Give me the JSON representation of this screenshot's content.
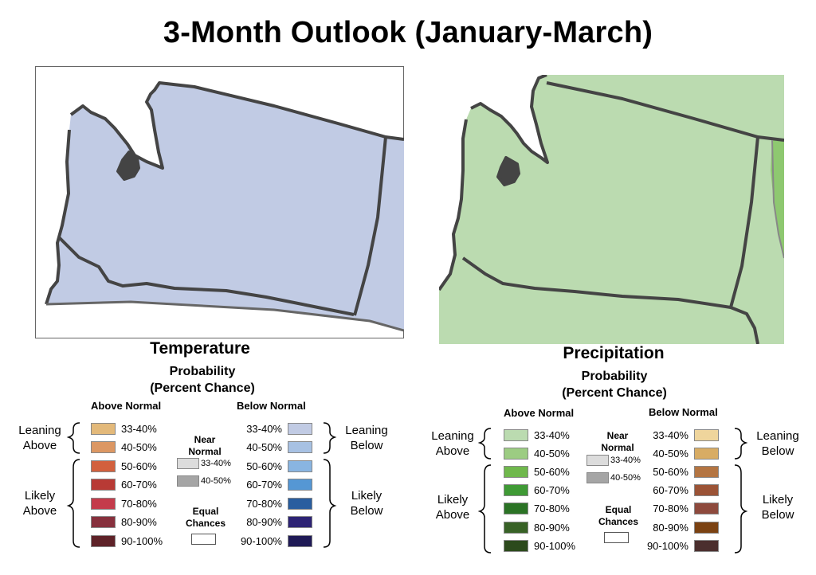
{
  "title": "3-Month Outlook (January-March)",
  "maps": {
    "temperature": {
      "fill": "#c1cbe4",
      "border": "#444444"
    },
    "precipitation": {
      "fill": "#bbdbb0",
      "accent_fill": "#8ec870",
      "border": "#444444"
    }
  },
  "temperature_legend": {
    "title": "Temperature",
    "subtitle_1": "Probability",
    "subtitle_2": "(Percent Chance)",
    "above_header": "Above Normal",
    "below_header": "Below Normal",
    "leaning_above_1": "Leaning",
    "leaning_above_2": "Above",
    "likely_above_1": "Likely",
    "likely_above_2": "Above",
    "leaning_below_1": "Leaning",
    "leaning_below_2": "Below",
    "likely_below_1": "Likely",
    "likely_below_2": "Below",
    "near_1": "Near",
    "near_2": "Normal",
    "equal_1": "Equal",
    "equal_2": "Chances",
    "above": [
      {
        "label": "33-40%",
        "color": "#e3b97a"
      },
      {
        "label": "40-50%",
        "color": "#dc9763"
      },
      {
        "label": "50-60%",
        "color": "#d2603d"
      },
      {
        "label": "60-70%",
        "color": "#b83a35"
      },
      {
        "label": "70-80%",
        "color": "#c43b4b"
      },
      {
        "label": "80-90%",
        "color": "#87303d"
      },
      {
        "label": "90-100%",
        "color": "#5e2228"
      }
    ],
    "below": [
      {
        "label": "33-40%",
        "color": "#c1cbe4"
      },
      {
        "label": "40-50%",
        "color": "#a7c1e3"
      },
      {
        "label": "50-60%",
        "color": "#89b5e1"
      },
      {
        "label": "60-70%",
        "color": "#5597d4"
      },
      {
        "label": "70-80%",
        "color": "#295d9f"
      },
      {
        "label": "80-90%",
        "color": "#2d2374"
      },
      {
        "label": "90-100%",
        "color": "#1f1a56"
      }
    ],
    "near": [
      {
        "label": "33-40%",
        "color": "#dcdcdc"
      },
      {
        "label": "40-50%",
        "color": "#a5a5a5"
      }
    ]
  },
  "precipitation_legend": {
    "title": "Precipitation",
    "subtitle_1": "Probability",
    "subtitle_2": "(Percent Chance)",
    "above_header": "Above Normal",
    "below_header": "Below Normal",
    "leaning_above_1": "Leaning",
    "leaning_above_2": "Above",
    "likely_above_1": "Likely",
    "likely_above_2": "Above",
    "leaning_below_1": "Leaning",
    "leaning_below_2": "Below",
    "likely_below_1": "Likely",
    "likely_below_2": "Below",
    "near_1": "Near",
    "near_2": "Normal",
    "equal_1": "Equal",
    "equal_2": "Chances",
    "above": [
      {
        "label": "33-40%",
        "color": "#bbdbb0"
      },
      {
        "label": "40-50%",
        "color": "#9ccc82"
      },
      {
        "label": "50-60%",
        "color": "#6fb84c"
      },
      {
        "label": "60-70%",
        "color": "#3f9a35"
      },
      {
        "label": "70-80%",
        "color": "#2b7325"
      },
      {
        "label": "80-90%",
        "color": "#386226"
      },
      {
        "label": "90-100%",
        "color": "#2c4a1c"
      }
    ],
    "below": [
      {
        "label": "33-40%",
        "color": "#efd59c"
      },
      {
        "label": "40-50%",
        "color": "#d8ac64"
      },
      {
        "label": "50-60%",
        "color": "#b47542"
      },
      {
        "label": "60-70%",
        "color": "#9b5336"
      },
      {
        "label": "70-80%",
        "color": "#8e4a3d"
      },
      {
        "label": "80-90%",
        "color": "#7b4212"
      },
      {
        "label": "90-100%",
        "color": "#4b2f2e"
      }
    ],
    "near": [
      {
        "label": "33-40%",
        "color": "#dcdcdc"
      },
      {
        "label": "40-50%",
        "color": "#a5a5a5"
      }
    ]
  }
}
